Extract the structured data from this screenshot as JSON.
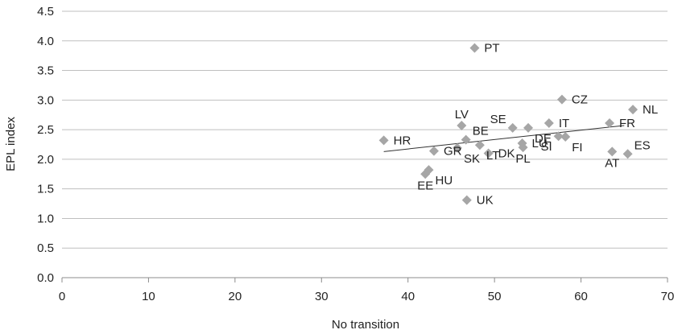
{
  "chart_data": {
    "type": "scatter",
    "title": "",
    "xlabel": "No transition",
    "ylabel": "EPL index",
    "xlim": [
      0,
      70
    ],
    "ylim": [
      0.0,
      4.5
    ],
    "x_ticks": [
      0,
      10,
      20,
      30,
      40,
      50,
      60,
      70
    ],
    "y_ticks": [
      0.0,
      0.5,
      1.0,
      1.5,
      2.0,
      2.5,
      3.0,
      3.5,
      4.0,
      4.5
    ],
    "x_tick_labels": [
      "0",
      "10",
      "20",
      "30",
      "40",
      "50",
      "60",
      "70"
    ],
    "y_tick_labels": [
      "0.0",
      "0.5",
      "1.0",
      "1.5",
      "2.0",
      "2.5",
      "3.0",
      "3.5",
      "4.0",
      "4.5"
    ],
    "grid": "horizontal",
    "marker": "diamond",
    "marker_color": "#a6a6a6",
    "points": [
      {
        "label": "HR",
        "x": 37.2,
        "y": 2.32,
        "label_pos": "right"
      },
      {
        "label": "PT",
        "x": 47.7,
        "y": 3.88,
        "label_pos": "right"
      },
      {
        "label": "CZ",
        "x": 57.8,
        "y": 3.01,
        "label_pos": "right"
      },
      {
        "label": "NL",
        "x": 66.0,
        "y": 2.84,
        "label_pos": "right"
      },
      {
        "label": "FR",
        "x": 63.3,
        "y": 2.61,
        "label_pos": "right"
      },
      {
        "label": "LV",
        "x": 46.2,
        "y": 2.57,
        "label_pos": "above"
      },
      {
        "label": "BE",
        "x": 46.7,
        "y": 2.33,
        "label_pos": "above-right"
      },
      {
        "label": "SE",
        "x": 52.1,
        "y": 2.53,
        "label_pos": "above-left"
      },
      {
        "label": "DE",
        "x": 53.9,
        "y": 2.53,
        "label_pos": "below-right"
      },
      {
        "label": "IT",
        "x": 56.3,
        "y": 2.61,
        "label_pos": "right"
      },
      {
        "label": "SI",
        "x": 57.4,
        "y": 2.39,
        "label_pos": "below-left"
      },
      {
        "label": "FI",
        "x": 58.2,
        "y": 2.38,
        "label_pos": "below-right"
      },
      {
        "label": "GR",
        "x": 43.0,
        "y": 2.14,
        "label_pos": "right"
      },
      {
        "label": "SK",
        "x": 45.7,
        "y": 2.19,
        "label_pos": "below-right"
      },
      {
        "label": "LT",
        "x": 48.3,
        "y": 2.24,
        "label_pos": "below-right"
      },
      {
        "label": "DK",
        "x": 49.3,
        "y": 2.1,
        "label_pos": "right"
      },
      {
        "label": "LU",
        "x": 53.2,
        "y": 2.27,
        "label_pos": "right"
      },
      {
        "label": "PL",
        "x": 53.3,
        "y": 2.2,
        "label_pos": "below"
      },
      {
        "label": "AT",
        "x": 63.6,
        "y": 2.13,
        "label_pos": "below"
      },
      {
        "label": "ES",
        "x": 65.4,
        "y": 2.09,
        "label_pos": "above-right"
      },
      {
        "label": "HU",
        "x": 42.4,
        "y": 1.82,
        "label_pos": "below-right"
      },
      {
        "label": "EE",
        "x": 42.0,
        "y": 1.75,
        "label_pos": "below"
      },
      {
        "label": "UK",
        "x": 46.8,
        "y": 1.31,
        "label_pos": "right"
      }
    ],
    "trendline": {
      "type": "linear",
      "x1": 37.2,
      "y1": 2.13,
      "x2": 65.0,
      "y2": 2.57,
      "color": "#333333"
    }
  }
}
